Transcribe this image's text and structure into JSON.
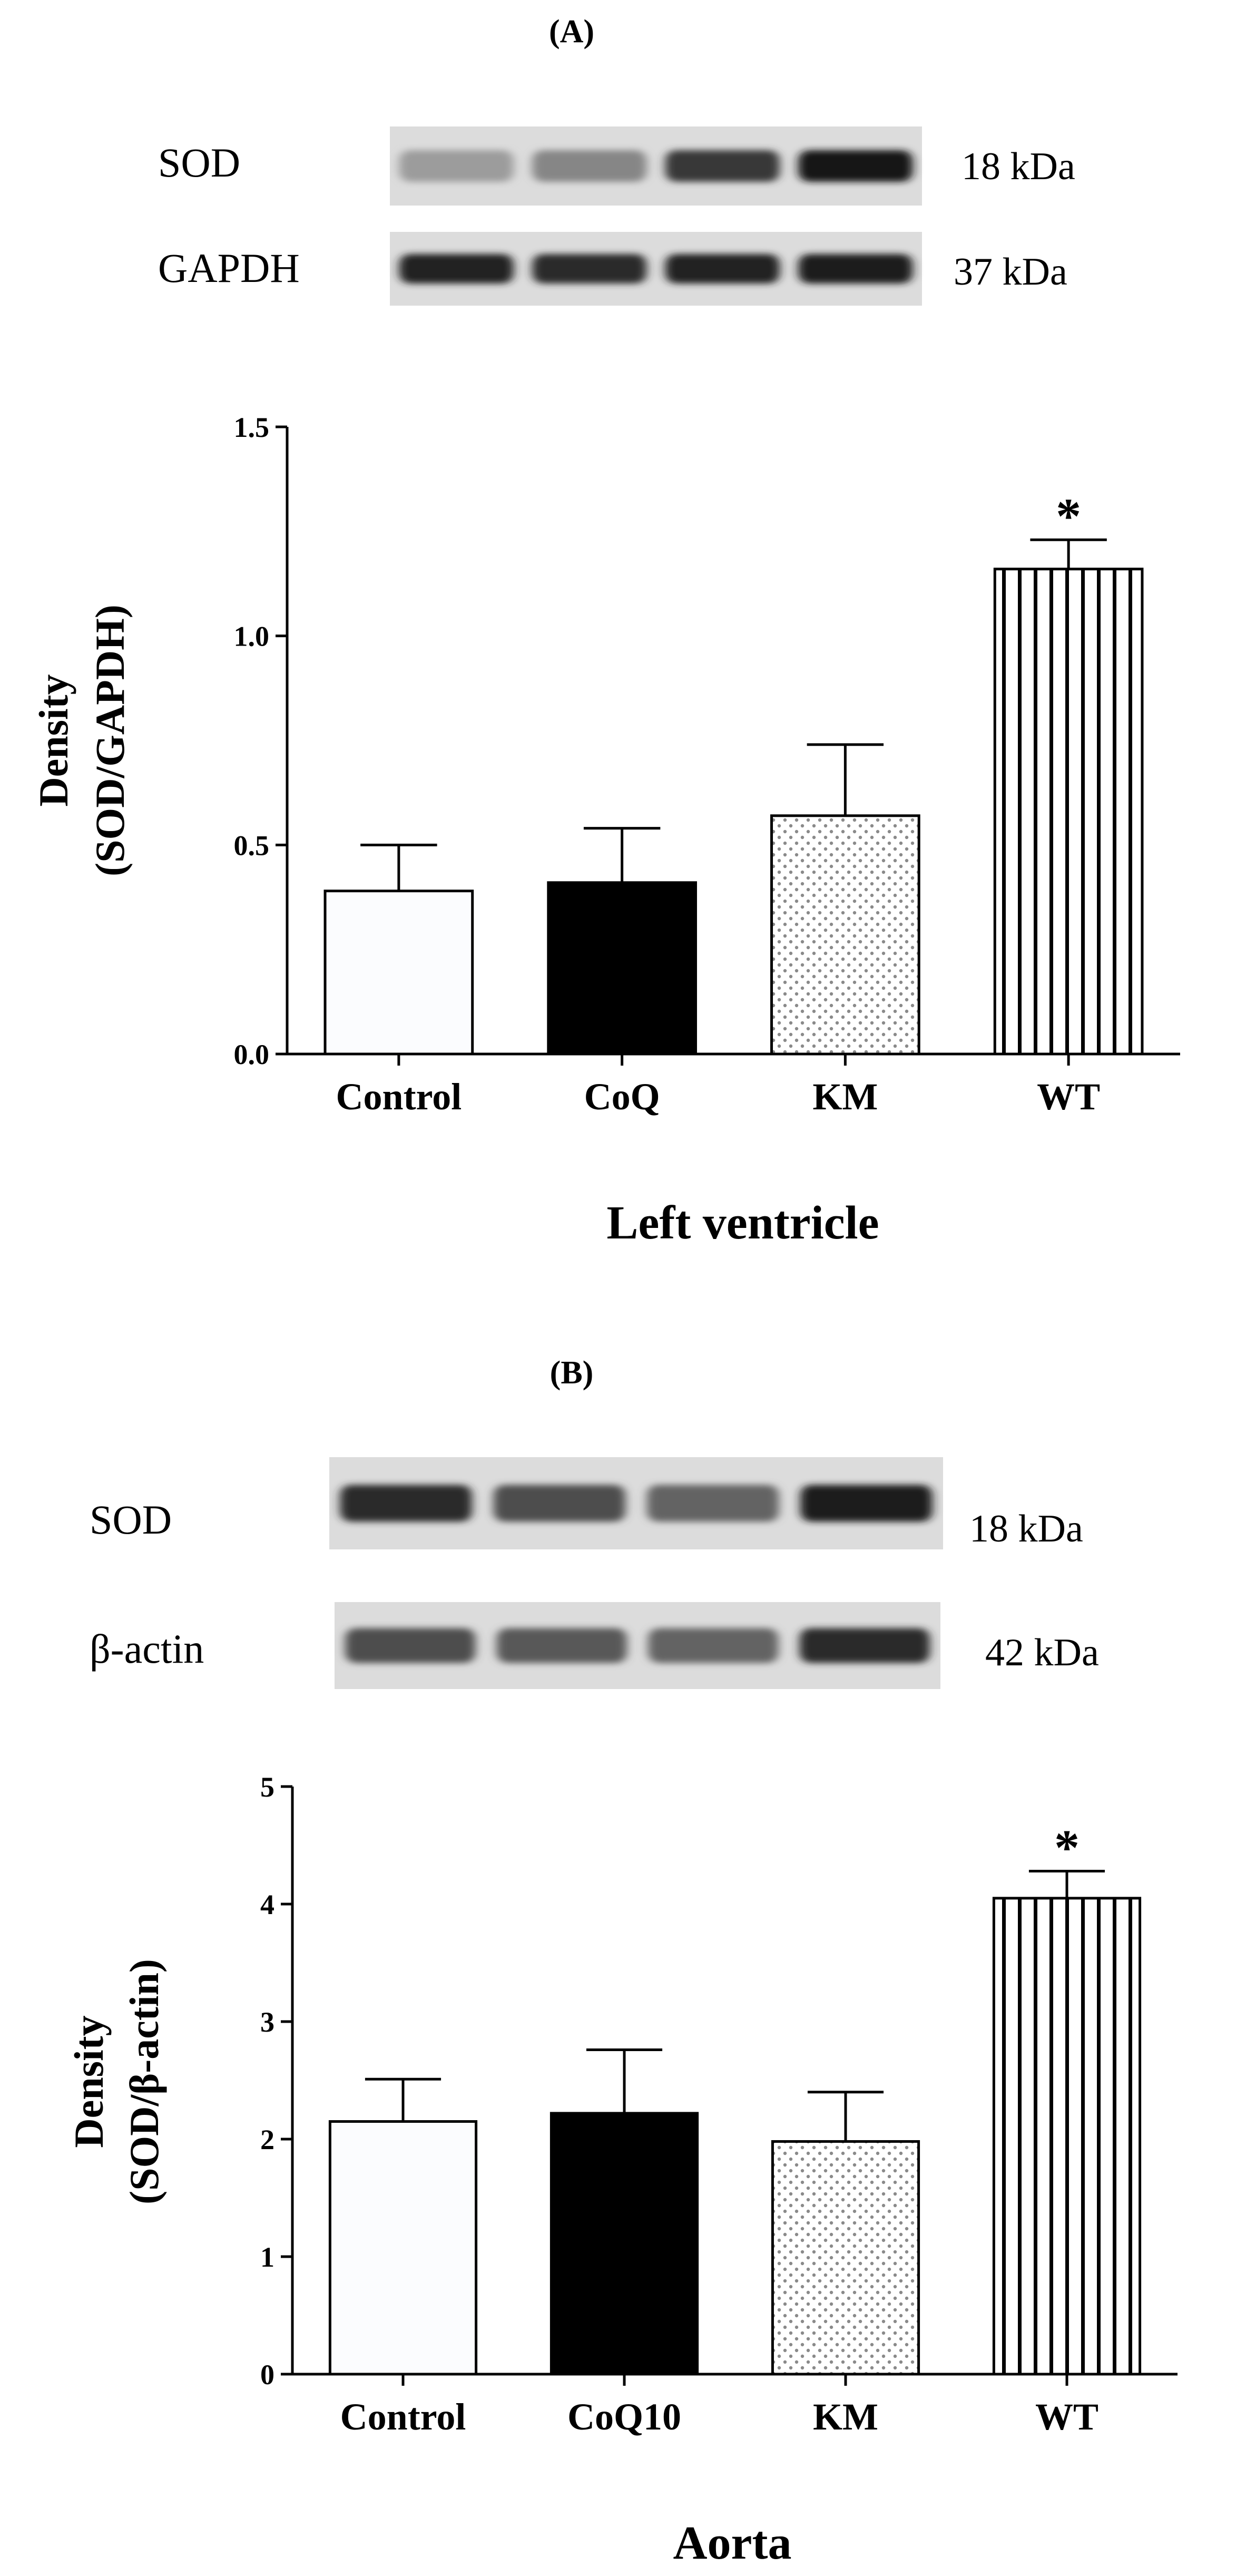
{
  "panels": [
    {
      "id": "A",
      "label": "(A)",
      "blot": {
        "top": {
          "name": "SOD",
          "kda": "18 kDa",
          "intensity": [
            0.35,
            0.45,
            0.8,
            0.95
          ]
        },
        "bottom": {
          "name": "GAPDH",
          "kda": "37 kDa",
          "intensity": [
            0.9,
            0.85,
            0.9,
            0.92
          ]
        }
      },
      "chart_data": {
        "type": "bar",
        "categories": [
          "Control",
          "CoQ",
          "KM",
          "WT"
        ],
        "values": [
          0.39,
          0.41,
          0.57,
          1.16
        ],
        "errors": [
          0.11,
          0.13,
          0.17,
          0.07
        ],
        "patterns": [
          "white",
          "black",
          "dots",
          "vertical-stripes"
        ],
        "significance": [
          "",
          "",
          "",
          "*"
        ],
        "ylabel_line1": "Density",
        "ylabel_line2": "(SOD/GAPDH)",
        "xlabel": "Left ventricle",
        "ylim": [
          0,
          1.5
        ],
        "yticks": [
          0,
          0.5,
          1.0,
          1.5
        ],
        "ytick_labels": [
          "0.0",
          "0.5",
          "1.0",
          "1.5"
        ]
      }
    },
    {
      "id": "B",
      "label": "(B)",
      "blot": {
        "top": {
          "name": "SOD",
          "kda": "18 kDa",
          "intensity": [
            0.85,
            0.7,
            0.6,
            0.92
          ]
        },
        "bottom": {
          "name": "β-actin",
          "kda": "42 kDa",
          "intensity": [
            0.7,
            0.65,
            0.6,
            0.85
          ]
        }
      },
      "chart_data": {
        "type": "bar",
        "categories": [
          "Control",
          "CoQ10",
          "KM",
          "WT"
        ],
        "values": [
          2.15,
          2.22,
          1.98,
          4.05
        ],
        "errors": [
          0.36,
          0.54,
          0.42,
          0.23
        ],
        "patterns": [
          "white",
          "black",
          "dots",
          "vertical-stripes"
        ],
        "significance": [
          "",
          "",
          "",
          "*"
        ],
        "ylabel_line1": "Density",
        "ylabel_line2": "(SOD/β-actin)",
        "xlabel": "Aorta",
        "ylim": [
          0,
          5
        ],
        "yticks": [
          0,
          1,
          2,
          3,
          4,
          5
        ],
        "ytick_labels": [
          "0",
          "1",
          "2",
          "3",
          "4",
          "5"
        ]
      }
    }
  ]
}
